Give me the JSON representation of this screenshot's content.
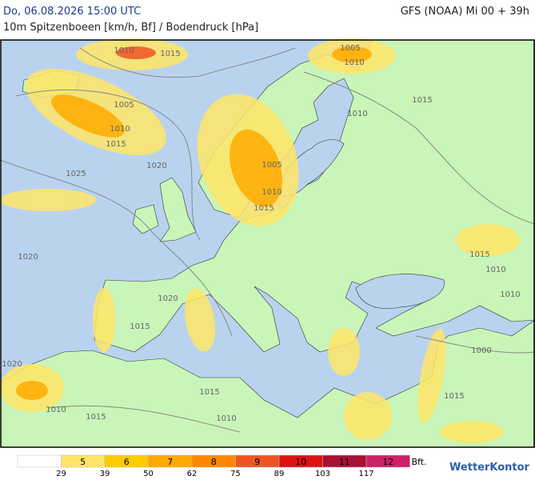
{
  "header": {
    "datetime": "Do, 06.08.2026 15:00 UTC",
    "model": "GFS (NOAA) Mi 00 + 39h",
    "title": "10m Spitzenboeen [km/h, Bf] / Bodendruck [hPa]"
  },
  "isobar_labels": [
    "1010",
    "1015",
    "1005",
    "1010",
    "1015",
    "1020",
    "1025",
    "1020",
    "1020",
    "1015",
    "1020",
    "1015",
    "1010",
    "1010",
    "1015",
    "1005",
    "1010",
    "1015",
    "1010",
    "1005",
    "1010",
    "1015",
    "1015",
    "1010",
    "1010",
    "1000",
    "1015"
  ],
  "legend": {
    "beaufort": [
      5,
      6,
      7,
      8,
      9,
      10,
      11,
      12
    ],
    "kmh": [
      29,
      39,
      50,
      62,
      75,
      89,
      103,
      117
    ],
    "unit": "Bft.",
    "colors": [
      "#ffffff",
      "#ffe566",
      "#ffcc00",
      "#ffaa00",
      "#ff8800",
      "#ee5522",
      "#dd1111",
      "#aa1133",
      "#cc2266"
    ]
  },
  "logo": "WetterKontor"
}
